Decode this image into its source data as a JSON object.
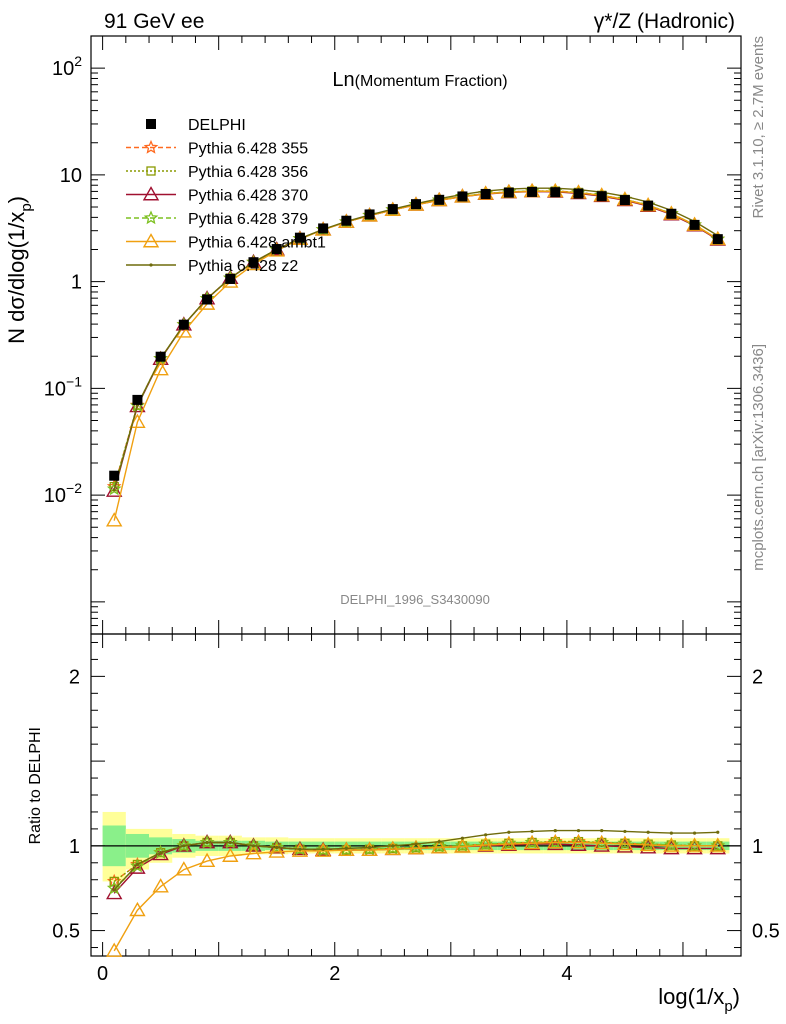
{
  "header": {
    "left": "91 GeV ee",
    "right": "γ*/Z (Hadronic)"
  },
  "side_text": {
    "top": "Rivet 3.1.10, ≥ 2.7M events",
    "bottom": "mcplots.cern.ch [arXiv:1306.3436]"
  },
  "chart_data": {
    "type": "line",
    "title": "Ln(Momentum Fraction)",
    "watermark": "DELPHI_1996_S3430090",
    "xlabel": "log(1/x_p)",
    "ylabel": "N dσ/dlog(1/x_p)",
    "ratio_ylabel": "Ratio to DELPHI",
    "xlim": [
      -0.1,
      5.5
    ],
    "ylim_main": [
      0.0005,
      200
    ],
    "ylim_ratio": [
      0.35,
      2.25
    ],
    "y_scale_main": "log",
    "x_ticks": [
      0,
      2,
      4
    ],
    "y_ticks_main": [
      {
        "v": 0.01,
        "b": "10",
        "e": "−2"
      },
      {
        "v": 0.1,
        "b": "10",
        "e": "−1"
      },
      {
        "v": 1,
        "b": "1",
        "e": ""
      },
      {
        "v": 10,
        "b": "10",
        "e": ""
      },
      {
        "v": 100,
        "b": "10",
        "e": "2"
      }
    ],
    "y_ticks_ratio": [
      0.5,
      1,
      2
    ],
    "legend_position": "top-left",
    "x": [
      0.1,
      0.3,
      0.5,
      0.7,
      0.9,
      1.1,
      1.3,
      1.5,
      1.7,
      1.9,
      2.1,
      2.3,
      2.5,
      2.7,
      2.9,
      3.1,
      3.3,
      3.5,
      3.7,
      3.9,
      4.1,
      4.3,
      4.5,
      4.7,
      4.9,
      5.1,
      5.3
    ],
    "data": {
      "name": "DELPHI",
      "values": [
        0.0152,
        0.078,
        0.198,
        0.395,
        0.68,
        1.06,
        1.52,
        2.02,
        2.58,
        3.15,
        3.72,
        4.26,
        4.78,
        5.32,
        5.84,
        6.28,
        6.62,
        6.82,
        6.92,
        6.88,
        6.68,
        6.31,
        5.81,
        5.15,
        4.32,
        3.4,
        2.5
      ],
      "stat_band": [
        [
          0.88,
          1.12
        ],
        [
          0.93,
          1.07
        ],
        [
          0.95,
          1.05
        ],
        [
          0.96,
          1.04
        ],
        [
          0.97,
          1.03
        ],
        [
          0.97,
          1.03
        ],
        [
          0.97,
          1.03
        ],
        [
          0.975,
          1.025
        ],
        [
          0.975,
          1.025
        ],
        [
          0.975,
          1.025
        ],
        [
          0.975,
          1.025
        ],
        [
          0.975,
          1.025
        ],
        [
          0.975,
          1.025
        ],
        [
          0.975,
          1.025
        ],
        [
          0.975,
          1.025
        ],
        [
          0.975,
          1.025
        ],
        [
          0.975,
          1.025
        ],
        [
          0.975,
          1.025
        ],
        [
          0.975,
          1.025
        ],
        [
          0.975,
          1.025
        ],
        [
          0.975,
          1.025
        ],
        [
          0.975,
          1.025
        ],
        [
          0.975,
          1.025
        ],
        [
          0.975,
          1.025
        ],
        [
          0.975,
          1.025
        ],
        [
          0.975,
          1.025
        ],
        [
          0.975,
          1.025
        ]
      ],
      "tot_band": [
        [
          0.79,
          1.2
        ],
        [
          0.86,
          1.1
        ],
        [
          0.9,
          1.1
        ],
        [
          0.93,
          1.07
        ],
        [
          0.94,
          1.06
        ],
        [
          0.94,
          1.06
        ],
        [
          0.95,
          1.05
        ],
        [
          0.95,
          1.05
        ],
        [
          0.955,
          1.045
        ],
        [
          0.955,
          1.045
        ],
        [
          0.955,
          1.045
        ],
        [
          0.955,
          1.045
        ],
        [
          0.955,
          1.045
        ],
        [
          0.955,
          1.045
        ],
        [
          0.955,
          1.045
        ],
        [
          0.955,
          1.045
        ],
        [
          0.955,
          1.045
        ],
        [
          0.955,
          1.045
        ],
        [
          0.955,
          1.045
        ],
        [
          0.955,
          1.045
        ],
        [
          0.955,
          1.045
        ],
        [
          0.955,
          1.045
        ],
        [
          0.955,
          1.045
        ],
        [
          0.955,
          1.045
        ],
        [
          0.955,
          1.045
        ],
        [
          0.955,
          1.045
        ],
        [
          0.955,
          1.045
        ]
      ]
    },
    "series": [
      {
        "name": "Pythia 6.428 355",
        "color": "#ff6a20",
        "dash": "5,3",
        "marker": "star",
        "ratio": [
          0.79,
          0.89,
          0.96,
          1.0,
          1.02,
          1.02,
          1.0,
          0.99,
          0.98,
          0.975,
          0.975,
          0.98,
          0.985,
          0.99,
          0.995,
          1.0,
          1.01,
          1.015,
          1.02,
          1.025,
          1.025,
          1.02,
          1.015,
          1.01,
          1.005,
          1.0,
          1.0
        ]
      },
      {
        "name": "Pythia 6.428 356",
        "color": "#8a9a00",
        "dash": "2,2",
        "marker": "square",
        "ratio": [
          0.79,
          0.89,
          0.96,
          1.0,
          1.02,
          1.02,
          1.0,
          0.99,
          0.98,
          0.975,
          0.975,
          0.98,
          0.985,
          0.99,
          0.995,
          1.0,
          1.01,
          1.015,
          1.02,
          1.025,
          1.025,
          1.02,
          1.015,
          1.01,
          1.005,
          1.0,
          1.0
        ]
      },
      {
        "name": "Pythia 6.428 370",
        "color": "#a01030",
        "dash": "",
        "marker": "triangle",
        "ratio": [
          0.72,
          0.87,
          0.95,
          1.0,
          1.02,
          1.02,
          1.0,
          0.99,
          0.98,
          0.975,
          0.975,
          0.975,
          0.98,
          0.985,
          0.99,
          0.995,
          1.0,
          1.005,
          1.01,
          1.01,
          1.005,
          1.0,
          0.995,
          0.99,
          0.985,
          0.985,
          0.985
        ]
      },
      {
        "name": "Pythia 6.428 379",
        "color": "#7dc020",
        "dash": "5,3",
        "marker": "star",
        "ratio": [
          0.75,
          0.88,
          0.96,
          1.0,
          1.02,
          1.02,
          1.0,
          0.99,
          0.98,
          0.975,
          0.975,
          0.98,
          0.985,
          0.99,
          0.995,
          1.0,
          1.01,
          1.015,
          1.02,
          1.02,
          1.02,
          1.02,
          1.015,
          1.01,
          1.005,
          1.0,
          1.0
        ]
      },
      {
        "name": "Pythia 6.428 ambt1",
        "color": "#f0a010",
        "dash": "",
        "marker": "triangle",
        "ratio": [
          0.38,
          0.62,
          0.76,
          0.86,
          0.91,
          0.94,
          0.955,
          0.965,
          0.97,
          0.97,
          0.975,
          0.975,
          0.98,
          0.985,
          0.99,
          0.995,
          1.005,
          1.01,
          1.015,
          1.02,
          1.02,
          1.015,
          1.01,
          1.005,
          1.0,
          1.0,
          1.0
        ]
      },
      {
        "name": "Pythia 6.428 z2",
        "color": "#6f6b0c",
        "dash": "",
        "marker": "dot",
        "ratio": [
          0.74,
          0.89,
          0.96,
          1.0,
          1.02,
          1.02,
          1.0,
          0.99,
          0.98,
          0.98,
          0.985,
          0.99,
          1.0,
          1.01,
          1.025,
          1.045,
          1.065,
          1.08,
          1.085,
          1.09,
          1.09,
          1.09,
          1.085,
          1.08,
          1.075,
          1.075,
          1.08
        ]
      }
    ]
  }
}
